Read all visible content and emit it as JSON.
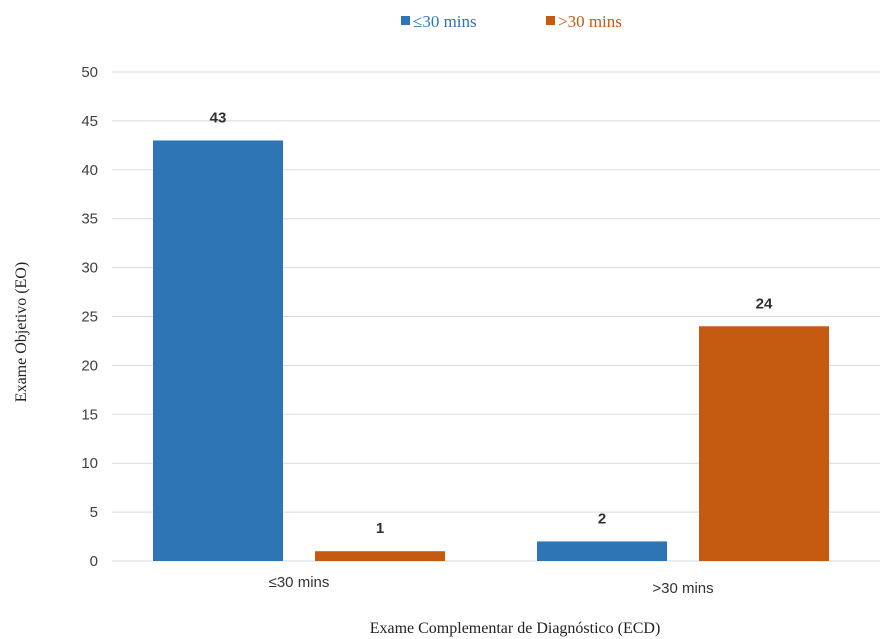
{
  "chart_data": {
    "type": "bar",
    "categories": [
      "≤30 mins",
      ">30 mins"
    ],
    "series": [
      {
        "name": "≤30 mins",
        "values": [
          43,
          2
        ],
        "color": "#2E75B6"
      },
      {
        "name": ">30 mins",
        "values": [
          1,
          24
        ],
        "color": "#C55A11"
      }
    ],
    "xlabel": "Exame Complementar de Diagnóstico (ECD)",
    "ylabel": "Exame Objetivo (EO)",
    "ylim": [
      0,
      50
    ],
    "yticks": [
      0,
      5,
      10,
      15,
      20,
      25,
      30,
      35,
      40,
      45,
      50
    ],
    "grid": true,
    "legend": "top-center",
    "data_labels": true
  }
}
